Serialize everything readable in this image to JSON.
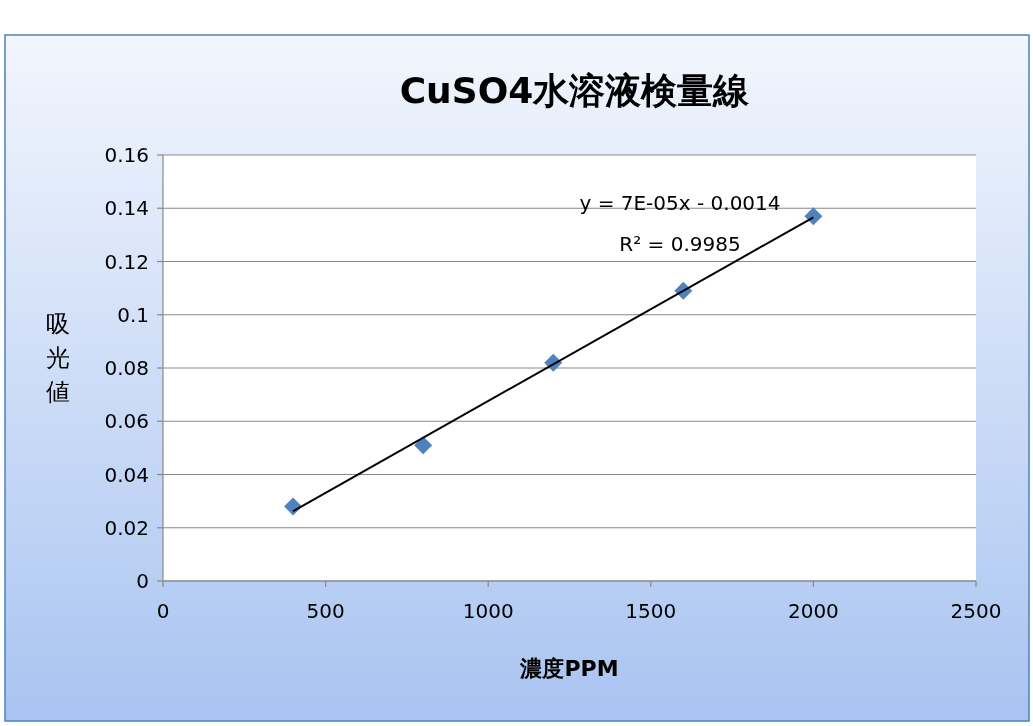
{
  "chart_data": {
    "type": "scatter",
    "title": "CuSO4水溶液検量線",
    "xlabel": "濃度PPM",
    "ylabel": "吸光値",
    "xlim": [
      0,
      2500
    ],
    "xticks": [
      0,
      500,
      1000,
      1500,
      2000,
      2500
    ],
    "ylim": [
      0,
      0.16
    ],
    "yticks": [
      0,
      0.02,
      0.04,
      0.06,
      0.08,
      0.1,
      0.12,
      0.14,
      0.16
    ],
    "grid": "y",
    "series": [
      {
        "marker": "diamond",
        "color": "#4f81bd",
        "x": [
          400,
          800,
          1200,
          1600,
          2000
        ],
        "values": [
          0.028,
          0.051,
          0.082,
          0.109,
          0.137
        ]
      },
      {
        "type": "line",
        "color": "#000000",
        "x": [
          400,
          2000
        ],
        "values": [
          0.0262,
          0.1366
        ]
      }
    ],
    "annotations": [
      "y = 7E-05x - 0.0014",
      "R² = 0.9985"
    ]
  }
}
